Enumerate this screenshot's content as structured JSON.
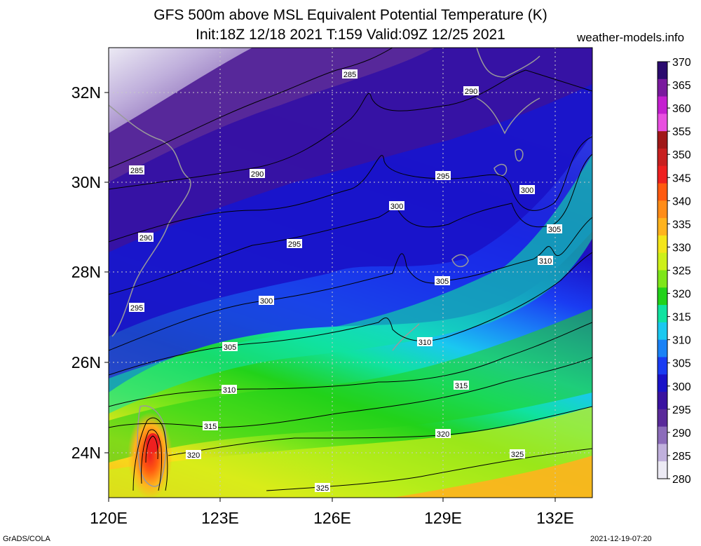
{
  "header": {
    "title_line1": "GFS 500m above MSL Equivalent Potential Temperature (K)",
    "title_line2": "Init:18Z 12/18 2021 T:159 Valid:09Z 12/25 2021",
    "brand": "weather-models.info"
  },
  "footer": {
    "left": "GrADS/COLA",
    "right": "2021-12-19-07:20"
  },
  "axes": {
    "x_ticks": [
      "120E",
      "123E",
      "126E",
      "129E",
      "132E"
    ],
    "y_ticks": [
      "32N",
      "30N",
      "28N",
      "26N",
      "24N"
    ]
  },
  "colorbar": {
    "labels": [
      "370",
      "365",
      "360",
      "355",
      "350",
      "345",
      "340",
      "335",
      "330",
      "325",
      "320",
      "315",
      "310",
      "305",
      "300",
      "295",
      "290",
      "285",
      "280"
    ],
    "colors": [
      "#2a0a6e",
      "#7a1a9e",
      "#c41fd0",
      "#e84fe0",
      "#a01818",
      "#c82020",
      "#ee2020",
      "#ff5a10",
      "#ff8c18",
      "#ffb31e",
      "#f4e51a",
      "#cdf01a",
      "#7ee61a",
      "#22d21a",
      "#10e2a0",
      "#1ac8f0",
      "#1a82f6",
      "#1a3cf2",
      "#1a12c8",
      "#3a12a0",
      "#5a2a9a",
      "#8c6cba",
      "#c0b0dc",
      "#eceaf4"
    ]
  },
  "contours": [
    {
      "label": "285"
    },
    {
      "label": "290"
    },
    {
      "label": "285"
    },
    {
      "label": "290"
    },
    {
      "label": "295"
    },
    {
      "label": "300"
    },
    {
      "label": "300"
    },
    {
      "label": "290"
    },
    {
      "label": "295"
    },
    {
      "label": "305"
    },
    {
      "label": "300"
    },
    {
      "label": "305"
    },
    {
      "label": "310"
    },
    {
      "label": "295"
    },
    {
      "label": "310"
    },
    {
      "label": "305"
    },
    {
      "label": "310"
    },
    {
      "label": "315"
    },
    {
      "label": "315"
    },
    {
      "label": "320"
    },
    {
      "label": "320"
    },
    {
      "label": "325"
    },
    {
      "label": "325"
    }
  ]
}
